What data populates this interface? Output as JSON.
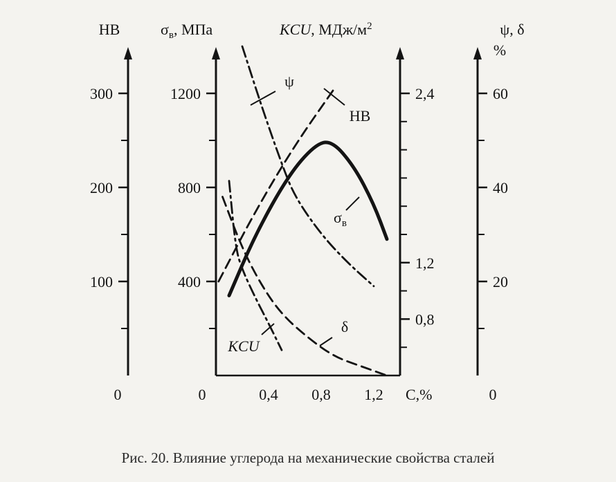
{
  "caption": "Рис. 20. Влияние углерода на механические свойства сталей",
  "chart_data": {
    "type": "line",
    "x": {
      "label": "C,%",
      "range": [
        0,
        1.4
      ],
      "ticks": [
        0,
        0.4,
        0.8,
        1.2
      ],
      "tick_labels": [
        "0",
        "0,4",
        "0,8",
        "1,2"
      ]
    },
    "axes": [
      {
        "id": "HB",
        "label": "HB",
        "range": [
          0,
          300
        ],
        "ticks": [
          100,
          200,
          300
        ],
        "minor_ticks": [
          50,
          150,
          250
        ],
        "zero_label": "0"
      },
      {
        "id": "sigma",
        "label": "σв, МПа",
        "label_sym": "σ",
        "label_sub": "в",
        "label_rest": ", МПа",
        "range": [
          0,
          1200
        ],
        "ticks": [
          400,
          800,
          1200
        ],
        "tick_labels": [
          "400",
          "800",
          "1200"
        ],
        "minor_ticks": [
          200,
          600,
          1000
        ]
      },
      {
        "id": "KCU",
        "label": "KCU, МДж/м²",
        "label_italic": "KCU",
        "label_rest": ", МДж/м",
        "label_sup": "2",
        "range": [
          0.4,
          2.4
        ],
        "ticks": [
          0.8,
          1.2,
          2.4
        ],
        "tick_labels": [
          "0,8",
          "1,2",
          "2,4"
        ],
        "minor_ticks": [
          0.6,
          1.0,
          1.4,
          1.6,
          1.8,
          2.0,
          2.2
        ]
      },
      {
        "id": "psi",
        "label": "ψ, δ",
        "unit": "%",
        "range": [
          0,
          60
        ],
        "ticks": [
          20,
          40,
          60
        ],
        "minor_ticks": [
          10,
          30,
          50
        ],
        "zero_label": "0"
      }
    ],
    "series": [
      {
        "name": "HB",
        "axis": "HB",
        "style": "dashed",
        "points": [
          [
            0.02,
            100
          ],
          [
            0.3,
            175
          ],
          [
            0.6,
            245
          ],
          [
            0.9,
            305
          ]
        ]
      },
      {
        "name": "σв",
        "label_sym": "σ",
        "label_sub": "в",
        "axis": "sigma",
        "style": "solid-thick",
        "points": [
          [
            0.1,
            340
          ],
          [
            0.3,
            600
          ],
          [
            0.55,
            850
          ],
          [
            0.75,
            980
          ],
          [
            0.88,
            1000
          ],
          [
            1.05,
            890
          ],
          [
            1.2,
            730
          ],
          [
            1.3,
            580
          ]
        ]
      },
      {
        "name": "ψ",
        "axis": "psi",
        "style": "dashdot",
        "points": [
          [
            0.2,
            70
          ],
          [
            0.35,
            57
          ],
          [
            0.5,
            45
          ],
          [
            0.6,
            38
          ],
          [
            0.8,
            30
          ],
          [
            1.0,
            24
          ],
          [
            1.2,
            19
          ]
        ]
      },
      {
        "name": "δ",
        "axis": "psi",
        "style": "dashed",
        "points": [
          [
            0.05,
            38
          ],
          [
            0.2,
            27
          ],
          [
            0.35,
            19
          ],
          [
            0.5,
            13
          ],
          [
            0.7,
            8
          ],
          [
            0.9,
            4
          ],
          [
            1.1,
            2
          ],
          [
            1.3,
            0
          ]
        ]
      },
      {
        "name": "KCU",
        "label_italic": true,
        "axis": "KCU",
        "style": "dashdot",
        "points": [
          [
            0.1,
            1.78
          ],
          [
            0.15,
            1.3
          ],
          [
            0.2,
            1.15
          ],
          [
            0.3,
            0.95
          ],
          [
            0.4,
            0.77
          ],
          [
            0.5,
            0.58
          ]
        ]
      }
    ]
  }
}
